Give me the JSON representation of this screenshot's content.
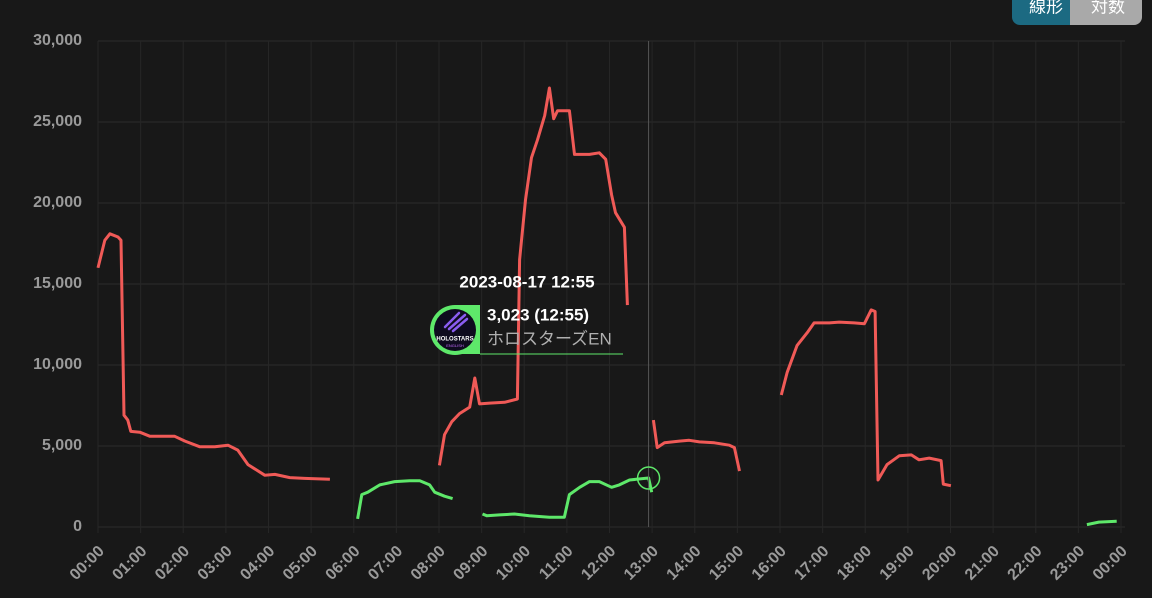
{
  "chart_data": {
    "type": "line",
    "xlim": [
      0,
      24
    ],
    "xticks": [
      {
        "value": 0,
        "label": "00:00"
      },
      {
        "value": 1,
        "label": "01:00"
      },
      {
        "value": 2,
        "label": "02:00"
      },
      {
        "value": 3,
        "label": "03:00"
      },
      {
        "value": 4,
        "label": "04:00"
      },
      {
        "value": 5,
        "label": "05:00"
      },
      {
        "value": 6,
        "label": "06:00"
      },
      {
        "value": 7,
        "label": "07:00"
      },
      {
        "value": 8,
        "label": "08:00"
      },
      {
        "value": 9,
        "label": "09:00"
      },
      {
        "value": 10,
        "label": "10:00"
      },
      {
        "value": 11,
        "label": "11:00"
      },
      {
        "value": 12,
        "label": "12:00"
      },
      {
        "value": 13,
        "label": "13:00"
      },
      {
        "value": 14,
        "label": "14:00"
      },
      {
        "value": 15,
        "label": "15:00"
      },
      {
        "value": 16,
        "label": "16:00"
      },
      {
        "value": 17,
        "label": "17:00"
      },
      {
        "value": 18,
        "label": "18:00"
      },
      {
        "value": 19,
        "label": "19:00"
      },
      {
        "value": 20,
        "label": "20:00"
      },
      {
        "value": 21,
        "label": "21:00"
      },
      {
        "value": 22,
        "label": "22:00"
      },
      {
        "value": 23,
        "label": "23:00"
      },
      {
        "value": 24,
        "label": "00:00"
      }
    ],
    "ylim": [
      0,
      30000
    ],
    "yticks": [
      0,
      {
        "value": 5000,
        "label": "5,000"
      },
      {
        "value": 10000,
        "label": "10,000"
      },
      {
        "value": 15000,
        "label": "15,000"
      },
      {
        "value": 20000,
        "label": "20,000"
      },
      {
        "value": 25000,
        "label": "25,000"
      },
      {
        "value": 30000,
        "label": "30,000"
      }
    ],
    "grid": true,
    "series": [
      {
        "color": "#f05a57",
        "x": [
          0,
          0.16,
          0.28,
          0.47,
          0.54,
          0.61,
          0.7,
          0.77,
          0.98,
          1.22,
          1.45,
          1.8,
          2.04,
          2.39,
          2.74,
          3.05,
          3.28,
          3.52,
          3.91,
          4.15,
          4.5,
          4.85,
          5.44,
          null,
          8.01,
          8.13,
          8.3,
          8.48,
          8.72,
          8.84,
          8.95,
          9.19,
          9.54,
          9.84,
          9.89,
          10.03,
          10.17,
          10.31,
          10.48,
          10.59,
          10.69,
          10.78,
          11.06,
          11.18,
          11.53,
          11.76,
          11.91,
          12.05,
          12.14,
          12.35,
          12.42,
          null,
          13.03,
          13.12,
          13.29,
          13.64,
          13.87,
          14.11,
          14.46,
          14.81,
          14.93,
          15.05,
          null,
          16.03,
          16.17,
          16.4,
          16.64,
          16.8,
          17.16,
          17.39,
          17.74,
          17.98,
          18.14,
          18.23,
          18.3,
          18.51,
          18.8,
          19.08,
          19.26,
          19.5,
          19.78,
          19.83,
          20.01
        ],
        "values": [
          16000,
          17700,
          18100,
          17900,
          17700,
          6900,
          6600,
          5900,
          5850,
          5600,
          5600,
          5600,
          5300,
          4950,
          4950,
          5050,
          4750,
          3850,
          3200,
          3250,
          3050,
          3000,
          2950,
          null,
          3800,
          5700,
          6500,
          7000,
          7400,
          9200,
          7600,
          7650,
          7700,
          7900,
          16500,
          20200,
          22800,
          23900,
          25400,
          27100,
          25200,
          25700,
          25700,
          23000,
          23000,
          23100,
          22700,
          20500,
          19400,
          18500,
          13700,
          null,
          6600,
          4900,
          5200,
          5300,
          5350,
          5250,
          5200,
          5050,
          4900,
          3450,
          null,
          8150,
          9550,
          11200,
          12000,
          12600,
          12600,
          12650,
          12600,
          12550,
          13400,
          13300,
          2900,
          3850,
          4400,
          4450,
          4150,
          4250,
          4100,
          2650,
          2550
        ]
      },
      {
        "name": "ホロスターズEN",
        "color": "#5ee86a",
        "x": [
          6.09,
          6.19,
          6.33,
          6.61,
          6.96,
          7.31,
          7.55,
          7.78,
          7.9,
          8.13,
          8.32,
          null,
          9.02,
          9.12,
          9.42,
          9.77,
          10.12,
          10.59,
          10.94,
          11.06,
          11.3,
          11.53,
          11.76,
          12.05,
          12.23,
          12.47,
          12.9167,
          12.99,
          null,
          23.2,
          23.48,
          23.9
        ],
        "values": [
          500,
          2000,
          2150,
          2600,
          2800,
          2850,
          2850,
          2600,
          2150,
          1900,
          1750,
          null,
          800,
          700,
          750,
          800,
          700,
          600,
          600,
          2000,
          2450,
          2800,
          2800,
          2450,
          2600,
          2900,
          3023,
          2150,
          null,
          150,
          300,
          350
        ]
      }
    ],
    "tooltip": {
      "title": "2023-08-17 12:55",
      "x": 12.9167,
      "value": 3023,
      "label": "3,023 (12:55)",
      "logo_text": "HOLOSTARS",
      "logo_subtext": "ENGLISH"
    },
    "buttons": [
      "線形",
      "対数"
    ]
  }
}
